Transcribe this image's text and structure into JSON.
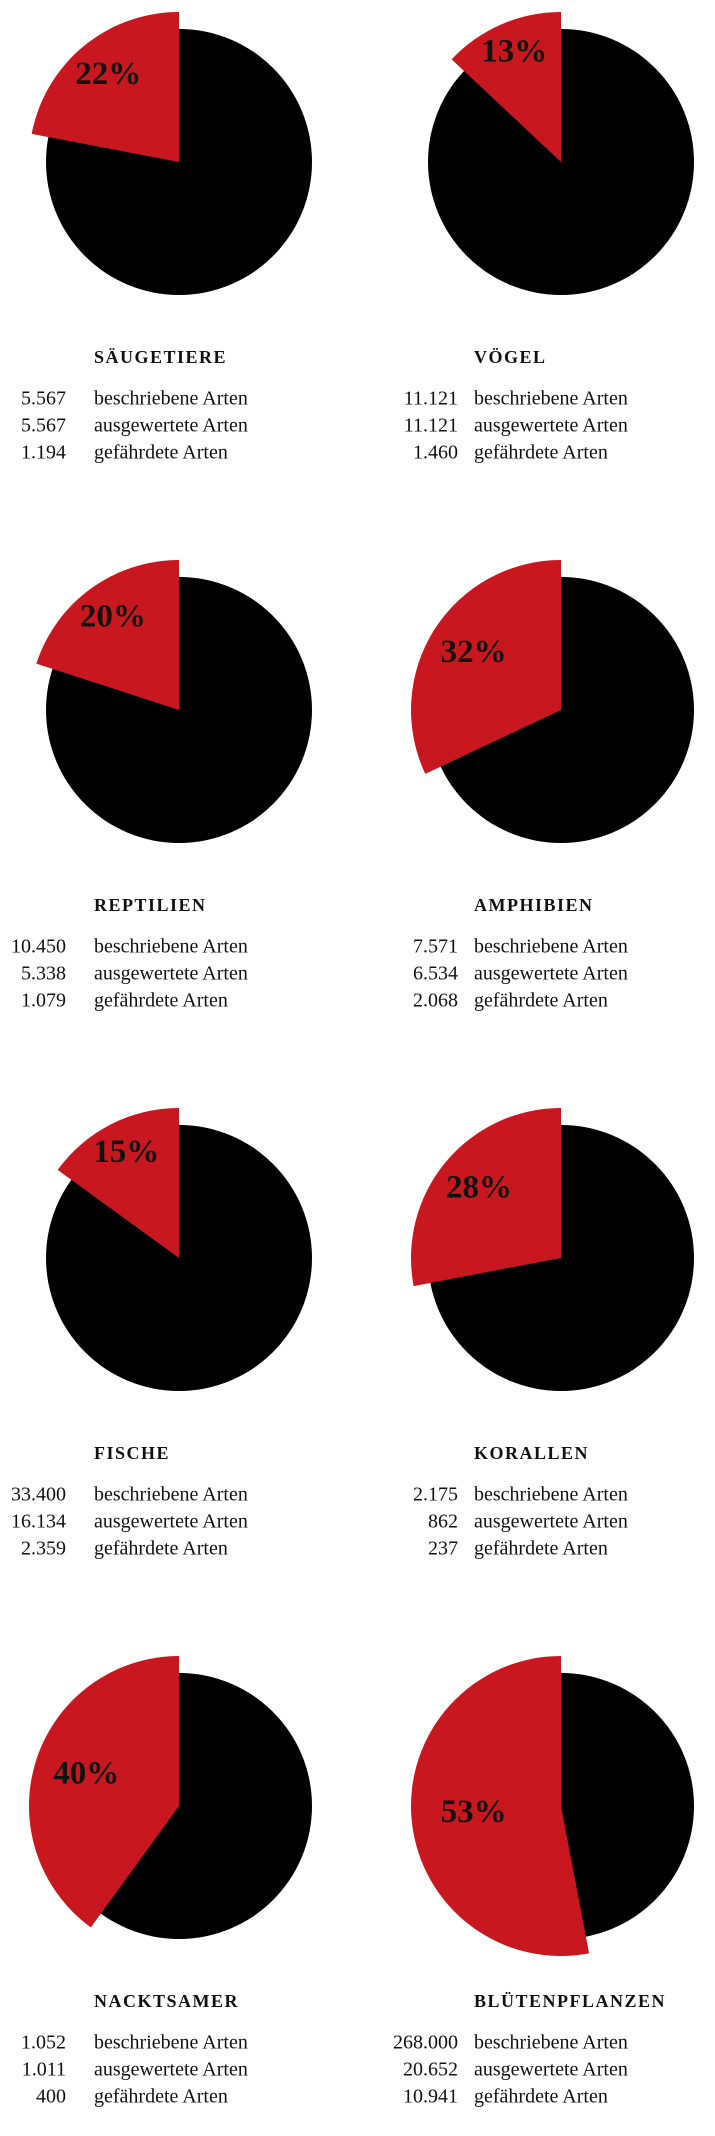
{
  "chart_data": [
    {
      "type": "pie",
      "title": "SÄUGETIERE",
      "values": [
        22
      ],
      "value_labels": [
        "22%"
      ],
      "color": "#c8171e",
      "rest_color": "#000000",
      "stats": [
        {
          "value": "5.567",
          "label": "beschriebene Arten"
        },
        {
          "value": "5.567",
          "label": "ausgewertete Arten"
        },
        {
          "value": "1.194",
          "label": "gefährdete Arten"
        }
      ]
    },
    {
      "type": "pie",
      "title": "VÖGEL",
      "values": [
        13
      ],
      "value_labels": [
        "13%"
      ],
      "color": "#c8171e",
      "rest_color": "#000000",
      "stats": [
        {
          "value": "11.121",
          "label": "beschriebene Arten"
        },
        {
          "value": "11.121",
          "label": "ausgewertete Arten"
        },
        {
          "value": "1.460",
          "label": "gefährdete Arten"
        }
      ]
    },
    {
      "type": "pie",
      "title": "REPTILIEN",
      "values": [
        20
      ],
      "value_labels": [
        "20%"
      ],
      "color": "#c8171e",
      "rest_color": "#000000",
      "stats": [
        {
          "value": "10.450",
          "label": "beschriebene Arten"
        },
        {
          "value": "5.338",
          "label": "ausgewertete Arten"
        },
        {
          "value": "1.079",
          "label": "gefährdete Arten"
        }
      ]
    },
    {
      "type": "pie",
      "title": "AMPHIBIEN",
      "values": [
        32
      ],
      "value_labels": [
        "32%"
      ],
      "color": "#c8171e",
      "rest_color": "#000000",
      "stats": [
        {
          "value": "7.571",
          "label": "beschriebene Arten"
        },
        {
          "value": "6.534",
          "label": "ausgewertete Arten"
        },
        {
          "value": "2.068",
          "label": "gefährdete Arten"
        }
      ]
    },
    {
      "type": "pie",
      "title": "FISCHE",
      "values": [
        15
      ],
      "value_labels": [
        "15%"
      ],
      "color": "#c8171e",
      "rest_color": "#000000",
      "stats": [
        {
          "value": "33.400",
          "label": "beschriebene Arten"
        },
        {
          "value": "16.134",
          "label": "ausgewertete Arten"
        },
        {
          "value": "2.359",
          "label": "gefährdete Arten"
        }
      ]
    },
    {
      "type": "pie",
      "title": "KORALLEN",
      "values": [
        28
      ],
      "value_labels": [
        "28%"
      ],
      "color": "#c8171e",
      "rest_color": "#000000",
      "stats": [
        {
          "value": "2.175",
          "label": "beschriebene Arten"
        },
        {
          "value": "862",
          "label": "ausgewertete Arten"
        },
        {
          "value": "237",
          "label": "gefährdete Arten"
        }
      ]
    },
    {
      "type": "pie",
      "title": "NACKTSAMER",
      "values": [
        40
      ],
      "value_labels": [
        "40%"
      ],
      "color": "#c8171e",
      "rest_color": "#000000",
      "stats": [
        {
          "value": "1.052",
          "label": "beschriebene Arten"
        },
        {
          "value": "1.011",
          "label": "ausgewertete Arten"
        },
        {
          "value": "400",
          "label": "gefährdete Arten"
        }
      ]
    },
    {
      "type": "pie",
      "title": "BLÜTENPFLANZEN",
      "values": [
        53
      ],
      "value_labels": [
        "53%"
      ],
      "color": "#c8171e",
      "rest_color": "#000000",
      "stats": [
        {
          "value": "268.000",
          "label": "beschriebene Arten"
        },
        {
          "value": "20.652",
          "label": "ausgewertete Arten"
        },
        {
          "value": "10.941",
          "label": "gefährdete Arten"
        }
      ]
    }
  ]
}
